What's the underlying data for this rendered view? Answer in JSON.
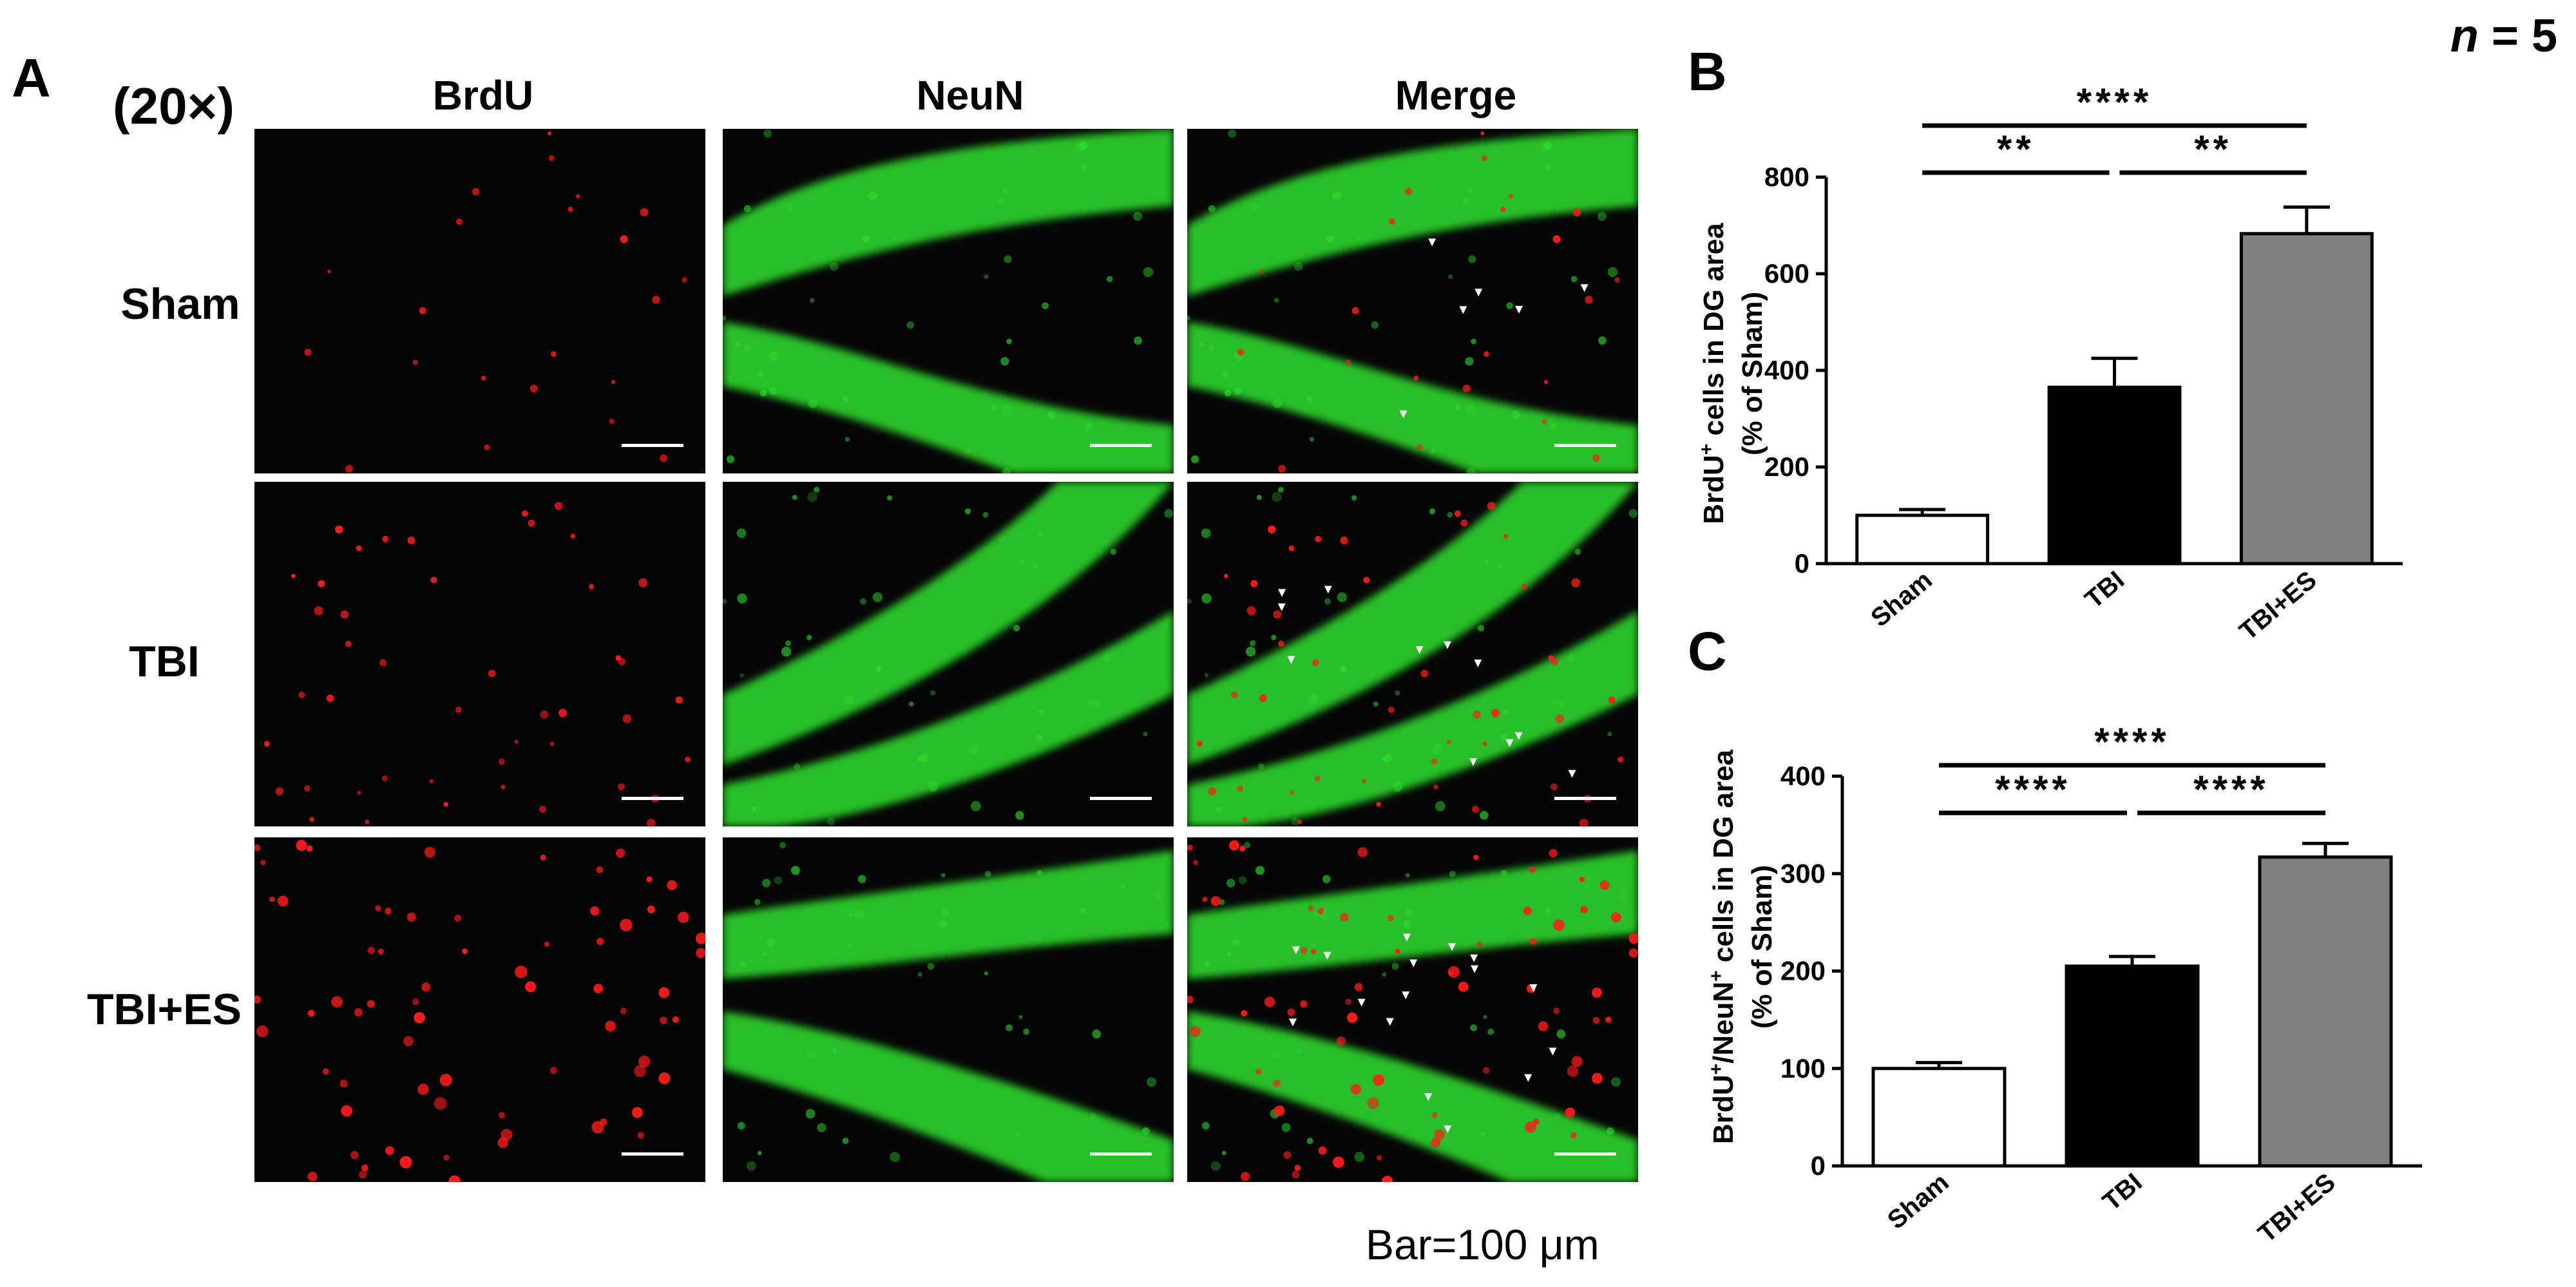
{
  "figure": {
    "n_label": "n = 5",
    "n_italic": "n",
    "n_rest": " = 5",
    "bar_note": "Bar=100 μm"
  },
  "panel_a": {
    "letter": "A",
    "magnification": "(20×)",
    "columns": [
      "BrdU",
      "NeuN",
      "Merge"
    ],
    "rows": [
      "Sham",
      "TBI",
      "TBI+ES"
    ],
    "colors": {
      "brdu": "#ff1a1a",
      "neun": "#2ee02e",
      "merge_marker": "#ffffff",
      "scale_bar": "#ffffff"
    }
  },
  "chart_data": [
    {
      "panel": "B",
      "type": "bar",
      "categories": [
        "Sham",
        "TBI",
        "TBI+ES"
      ],
      "values": [
        100,
        365,
        683
      ],
      "errors": [
        12,
        60,
        55
      ],
      "bar_colors": [
        "#ffffff",
        "#000000",
        "#808080"
      ],
      "ylabel_sup": "+",
      "ylabel_line1_a": "BrdU",
      "ylabel_line1_b": " cells in DG area",
      "ylabel_line2": "(% of Sham)",
      "ylim": [
        0,
        800
      ],
      "yticks": [
        0,
        200,
        400,
        600,
        800
      ],
      "significance": [
        {
          "from": 0,
          "to": 1,
          "label": "**"
        },
        {
          "from": 1,
          "to": 2,
          "label": "**"
        },
        {
          "from": 0,
          "to": 2,
          "label": "****"
        }
      ]
    },
    {
      "panel": "C",
      "type": "bar",
      "categories": [
        "Sham",
        "TBI",
        "TBI+ES"
      ],
      "values": [
        100,
        205,
        317
      ],
      "errors": [
        6,
        10,
        14
      ],
      "bar_colors": [
        "#ffffff",
        "#000000",
        "#808080"
      ],
      "ylabel_sup": "+",
      "ylabel_line1_a": "BrdU",
      "ylabel_line1_b": "/NeuN",
      "ylabel_line1_c": " cells in DG area",
      "ylabel_line2": "(% of Sham)",
      "ylim": [
        0,
        400
      ],
      "yticks": [
        0,
        100,
        200,
        300,
        400
      ],
      "significance": [
        {
          "from": 0,
          "to": 1,
          "label": "****"
        },
        {
          "from": 1,
          "to": 2,
          "label": "****"
        },
        {
          "from": 0,
          "to": 2,
          "label": "****"
        }
      ]
    }
  ]
}
